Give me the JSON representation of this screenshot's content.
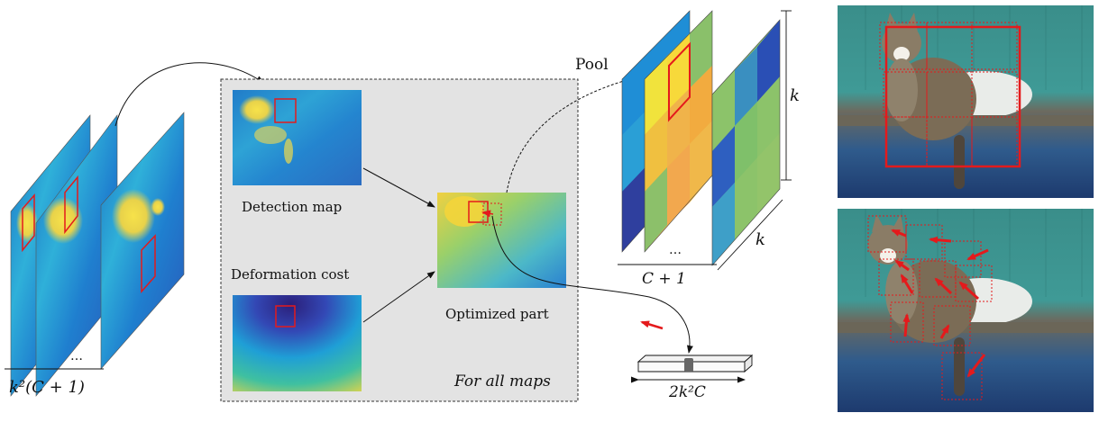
{
  "labels": {
    "detection_map": "Detection map",
    "deformation_cost": "Deformation cost",
    "optimized_part": "Optimized part",
    "for_all_maps": "For all maps",
    "pool": "Pool",
    "k_right": "k",
    "k_diag": "k",
    "c_plus_1": "C + 1",
    "dots_maps": "…",
    "dots_planes": "…",
    "k2_c_plus_1": "k²(C + 1)",
    "two_k2_c": "2k²C"
  },
  "colors": {
    "marker_red": "#e41a1c",
    "panel_gray": "#e3e3e3",
    "heat_low": "#2a3fa0",
    "heat_mid": "#1f9fd6",
    "heat_high": "#f2d43b"
  },
  "photo_panels": [
    {
      "subject": "cat on wooden bench",
      "overlay": "grid-boxes"
    },
    {
      "subject": "cat on wooden bench",
      "overlay": "deformed-part-arrows"
    }
  ]
}
